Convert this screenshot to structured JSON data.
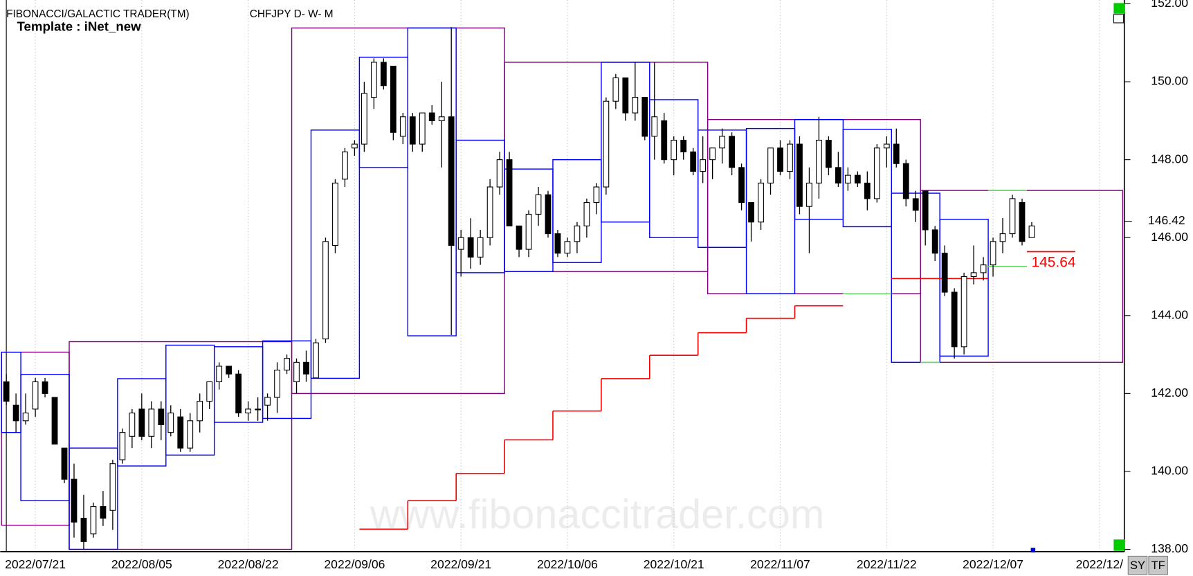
{
  "chart_data": {
    "type": "candlestick",
    "title": "FIBONACCI/GALACTIC TRADER(TM)",
    "subtitle": "CHFJPY D- W- M",
    "template": "Template : iNet_new",
    "watermark": "www.fibonaccitrader.com",
    "xlim": [
      -0.63,
      115.57
    ],
    "xticks": [
      {
        "value": 3,
        "label": "2022/07/21"
      },
      {
        "value": 14,
        "label": "2022/08/05"
      },
      {
        "value": 25,
        "label": "2022/08/22"
      },
      {
        "value": 36,
        "label": "2022/09/06"
      },
      {
        "value": 47,
        "label": "2022/09/21"
      },
      {
        "value": 58,
        "label": "2022/10/06"
      },
      {
        "value": 69,
        "label": "2022/10/21"
      },
      {
        "value": 80,
        "label": "2022/11/07"
      },
      {
        "value": 91,
        "label": "2022/11/22"
      },
      {
        "value": 102,
        "label": "2022/12/07"
      },
      {
        "value": 113,
        "label": "2022/12/"
      }
    ],
    "ylim": [
      138,
      152
    ],
    "yticks": [
      {
        "value": 138,
        "label": "138.00"
      },
      {
        "value": 140,
        "label": "140.00"
      },
      {
        "value": 142,
        "label": "142.00"
      },
      {
        "value": 144,
        "label": "144.00"
      },
      {
        "value": 146,
        "label": "146.00"
      },
      {
        "value": 148,
        "label": "148.00"
      },
      {
        "value": 150,
        "label": "150.00"
      },
      {
        "value": 152,
        "label": "152.00"
      }
    ],
    "grid": true,
    "candles": {
      "up_color": "#ffffff",
      "down_color": "#000000",
      "open": [
        142.3,
        141.7,
        141.3,
        141.6,
        142.3,
        141.9,
        140.6,
        139.8,
        138.8,
        138.4,
        139.1,
        139.0,
        140.3,
        140.9,
        141.6,
        140.9,
        141.6,
        141.0,
        141.4,
        140.6,
        141.3,
        141.8,
        142.3,
        142.7,
        142.5,
        141.5,
        141.6,
        141.7,
        141.9,
        142.6,
        142.3,
        142.8,
        142.4,
        143.4,
        145.8,
        147.5,
        148.3,
        148.4,
        149.6,
        150.5,
        150.4,
        148.6,
        149.1,
        148.4,
        149.2,
        149.0,
        149.1,
        145.7,
        146.0,
        145.5,
        146.0,
        147.3,
        148.0,
        146.3,
        145.7,
        146.6,
        147.1,
        146.1,
        145.6,
        145.9,
        146.3,
        146.9,
        147.3,
        149.5,
        150.1,
        149.2,
        149.6,
        148.6,
        149.0,
        148.0,
        148.5,
        148.2,
        147.7,
        148.0,
        148.3,
        148.6,
        147.8,
        146.9,
        146.4,
        147.4,
        148.3,
        147.7,
        148.4,
        146.8,
        147.4,
        148.5,
        147.8,
        147.4,
        147.6,
        147.4,
        147.0,
        148.3,
        148.4,
        147.9,
        147.0,
        147.2,
        146.2,
        145.6,
        144.6,
        143.2,
        145.0,
        145.1,
        145.3,
        145.9,
        146.1,
        146.9,
        146.0
      ],
      "high": [
        142.5,
        142.0,
        142.0,
        142.4,
        142.4,
        141.9,
        140.6,
        140.2,
        139.4,
        139.2,
        139.5,
        140.3,
        141.1,
        141.6,
        142.0,
        141.8,
        141.8,
        141.7,
        141.6,
        141.5,
        142.0,
        142.3,
        142.8,
        142.7,
        142.6,
        141.8,
        141.9,
        142.0,
        142.8,
        143.0,
        142.9,
        143.1,
        143.4,
        146.0,
        147.5,
        148.3,
        148.5,
        150.0,
        150.6,
        150.6,
        150.4,
        149.2,
        149.2,
        149.2,
        149.4,
        150.0,
        151.4,
        146.2,
        146.5,
        146.2,
        147.5,
        148.2,
        148.2,
        146.3,
        146.7,
        147.3,
        147.2,
        146.2,
        146.0,
        146.4,
        147.0,
        147.4,
        149.6,
        150.2,
        150.1,
        150.5,
        149.6,
        150.5,
        149.2,
        148.6,
        148.6,
        148.3,
        148.6,
        148.3,
        148.8,
        148.7,
        147.9,
        146.9,
        147.5,
        148.3,
        148.5,
        148.5,
        148.6,
        147.8,
        149.1,
        148.6,
        148.2,
        147.8,
        147.7,
        147.7,
        148.4,
        148.6,
        148.8,
        148.0,
        147.2,
        147.2,
        146.3,
        145.8,
        144.7,
        145.1,
        145.8,
        145.5,
        146.0,
        146.5,
        147.1,
        147.0,
        146.4
      ],
      "low": [
        141.7,
        141.0,
        141.2,
        141.4,
        141.9,
        140.7,
        139.7,
        138.3,
        138.0,
        138.3,
        138.6,
        138.5,
        140.2,
        140.6,
        140.8,
        140.6,
        140.8,
        140.9,
        140.5,
        140.5,
        141.0,
        141.6,
        142.1,
        142.4,
        141.4,
        141.3,
        141.3,
        141.3,
        141.5,
        142.5,
        142.0,
        142.3,
        142.4,
        143.3,
        145.6,
        147.3,
        148.1,
        148.2,
        149.3,
        149.8,
        148.5,
        148.4,
        148.2,
        148.2,
        148.9,
        147.8,
        143.5,
        145.0,
        145.2,
        145.3,
        145.8,
        147.1,
        146.3,
        145.5,
        145.5,
        146.3,
        146.0,
        145.5,
        145.5,
        145.6,
        146.0,
        146.6,
        147.1,
        149.3,
        149.0,
        149.0,
        148.5,
        148.0,
        147.9,
        147.6,
        148.0,
        147.6,
        147.4,
        147.5,
        147.9,
        147.6,
        146.7,
        145.9,
        146.2,
        147.1,
        147.6,
        147.5,
        146.6,
        145.6,
        147.0,
        147.6,
        147.3,
        147.2,
        147.3,
        146.7,
        146.9,
        147.8,
        147.8,
        146.8,
        146.4,
        145.8,
        145.4,
        144.5,
        142.9,
        143.0,
        144.8,
        144.9,
        145.0,
        145.6,
        146.0,
        145.8,
        146.0
      ],
      "close": [
        141.8,
        141.3,
        141.5,
        142.3,
        142.0,
        140.7,
        139.8,
        138.7,
        138.2,
        139.1,
        138.8,
        140.2,
        141.0,
        141.5,
        140.9,
        141.6,
        141.2,
        141.5,
        140.6,
        141.3,
        141.8,
        142.3,
        142.7,
        142.5,
        141.5,
        141.6,
        141.6,
        141.9,
        142.6,
        142.9,
        142.8,
        142.5,
        143.3,
        145.9,
        147.4,
        148.2,
        148.4,
        149.7,
        150.5,
        149.9,
        148.7,
        149.1,
        148.4,
        149.2,
        149.0,
        149.1,
        145.8,
        146.0,
        145.5,
        146.0,
        147.3,
        148.0,
        146.3,
        145.7,
        146.6,
        147.1,
        146.1,
        145.6,
        145.9,
        146.3,
        146.9,
        147.3,
        149.5,
        150.1,
        149.2,
        149.6,
        148.6,
        149.1,
        148.0,
        148.5,
        148.2,
        147.7,
        148.0,
        148.3,
        148.6,
        147.8,
        146.9,
        146.4,
        147.4,
        148.3,
        147.7,
        148.4,
        146.8,
        147.4,
        148.5,
        147.8,
        147.4,
        147.6,
        147.4,
        147.0,
        148.3,
        148.4,
        147.9,
        147.0,
        146.7,
        146.2,
        145.6,
        144.6,
        143.2,
        145.0,
        145.1,
        145.3,
        145.9,
        146.1,
        147.0,
        145.9,
        146.3
      ]
    },
    "monthly_boxes": {
      "color": "#800080",
      "x0": [
        -0.5,
        6.5,
        29.5,
        51.5,
        72.5,
        94.5
      ],
      "x1": [
        6.5,
        29.5,
        51.5,
        72.5,
        94.5,
        115.4
      ],
      "high": [
        143.06,
        143.33,
        151.38,
        150.5,
        149.03,
        147.21
      ],
      "low": [
        138.62,
        138.0,
        142.0,
        145.13,
        144.56,
        142.8
      ]
    },
    "weekly_boxes": {
      "color": "#0000ff",
      "x0": [
        -0.5,
        1.5,
        6.5,
        11.5,
        16.5,
        21.5,
        26.5,
        31.5,
        36.5,
        41.5,
        46.5,
        51.5,
        56.5,
        61.5,
        66.5,
        71.5,
        76.5,
        81.5,
        86.5,
        91.5,
        96.5
      ],
      "x1": [
        1.5,
        6.5,
        11.5,
        16.5,
        21.5,
        26.5,
        31.5,
        36.5,
        41.5,
        46.5,
        51.5,
        56.5,
        61.5,
        66.5,
        71.5,
        76.5,
        81.5,
        86.5,
        91.5,
        96.5,
        101.5
      ],
      "high": [
        143.06,
        142.49,
        140.6,
        142.38,
        143.24,
        143.2,
        143.35,
        148.76,
        150.63,
        151.38,
        148.5,
        147.76,
        148.0,
        150.5,
        149.54,
        148.76,
        148.8,
        149.03,
        148.78,
        147.14,
        146.47
      ],
      "low": [
        141.0,
        139.25,
        138.0,
        140.14,
        140.42,
        141.26,
        141.36,
        142.39,
        147.8,
        143.48,
        145.1,
        145.13,
        145.36,
        146.4,
        146.0,
        145.75,
        144.56,
        146.47,
        146.28,
        142.8,
        142.96
      ]
    },
    "red_steps": {
      "color": "#ff0000",
      "x0": [
        36.5,
        41.5,
        46.5,
        51.5,
        56.5,
        61.5,
        66.5,
        71.5,
        76.5,
        81.5,
        91.5,
        105.5
      ],
      "x1": [
        41.5,
        46.5,
        51.5,
        56.5,
        61.5,
        66.5,
        71.5,
        76.5,
        81.5,
        86.5,
        101.5,
        110.5
      ],
      "values": [
        138.52,
        139.25,
        139.95,
        140.81,
        141.55,
        142.38,
        142.98,
        143.56,
        143.93,
        144.25,
        144.95,
        145.64
      ]
    },
    "green_steps": {
      "color": "#66dd66",
      "x0": [
        86.5,
        94.5,
        101.5,
        101.5
      ],
      "x1": [
        91.5,
        96.5,
        105.5,
        105.5
      ],
      "values": [
        144.56,
        142.8,
        147.21,
        145.26
      ]
    },
    "target": {
      "value": 145.64,
      "label": "145.64"
    },
    "last_price": {
      "value": 146.42,
      "label": "146.42"
    },
    "buttons": [
      "SY",
      "TF"
    ]
  }
}
